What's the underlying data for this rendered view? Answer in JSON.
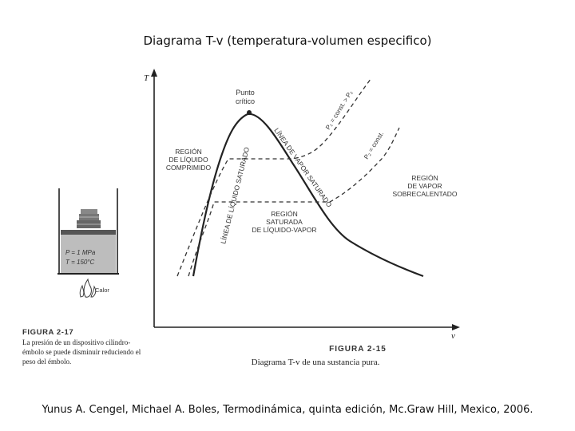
{
  "title": "Diagrama T-v (temperatura-volumen especifico)",
  "citation": "Yunus A. Cengel,  Michael A. Boles, Termodinámica, quinta edición, Mc.Graw Hill, Mexico, 2006.",
  "diagram": {
    "axis_t": "T",
    "axis_v": "v",
    "critical_point": [
      "Punto",
      "crítico"
    ],
    "compressed_liquid_region": [
      "REGIÓN",
      "DE LÍQUIDO",
      "COMPRIMIDO"
    ],
    "superheated_vapor_region": [
      "REGIÓN",
      "DE VAPOR",
      "SOBRECALENTADO"
    ],
    "mixture_region": [
      "REGIÓN",
      "SATURADA",
      "DE LÍQUIDO-VAPOR"
    ],
    "saturated_liquid_line": "LÍNEA DE LÍQUIDO SATURADO",
    "saturated_vapor_line": "LÍNEA DE VAPOR SATURADO",
    "isobar_1": "P₁ = const. > P₂",
    "isobar_2": "P₂ = const.",
    "figure_number": "FIGURA 2-15",
    "figure_caption": "Diagrama T-v de una sustancia pura."
  },
  "device": {
    "pressure": "P = 1 MPa",
    "temperature": "T = 150°C",
    "heat": "Calor",
    "figure_number": "FIGURA 2-17",
    "caption": [
      "La presión de un dispositivo cilindro-",
      "émbolo se puede disminuir reduciendo el",
      "peso del émbolo."
    ]
  }
}
